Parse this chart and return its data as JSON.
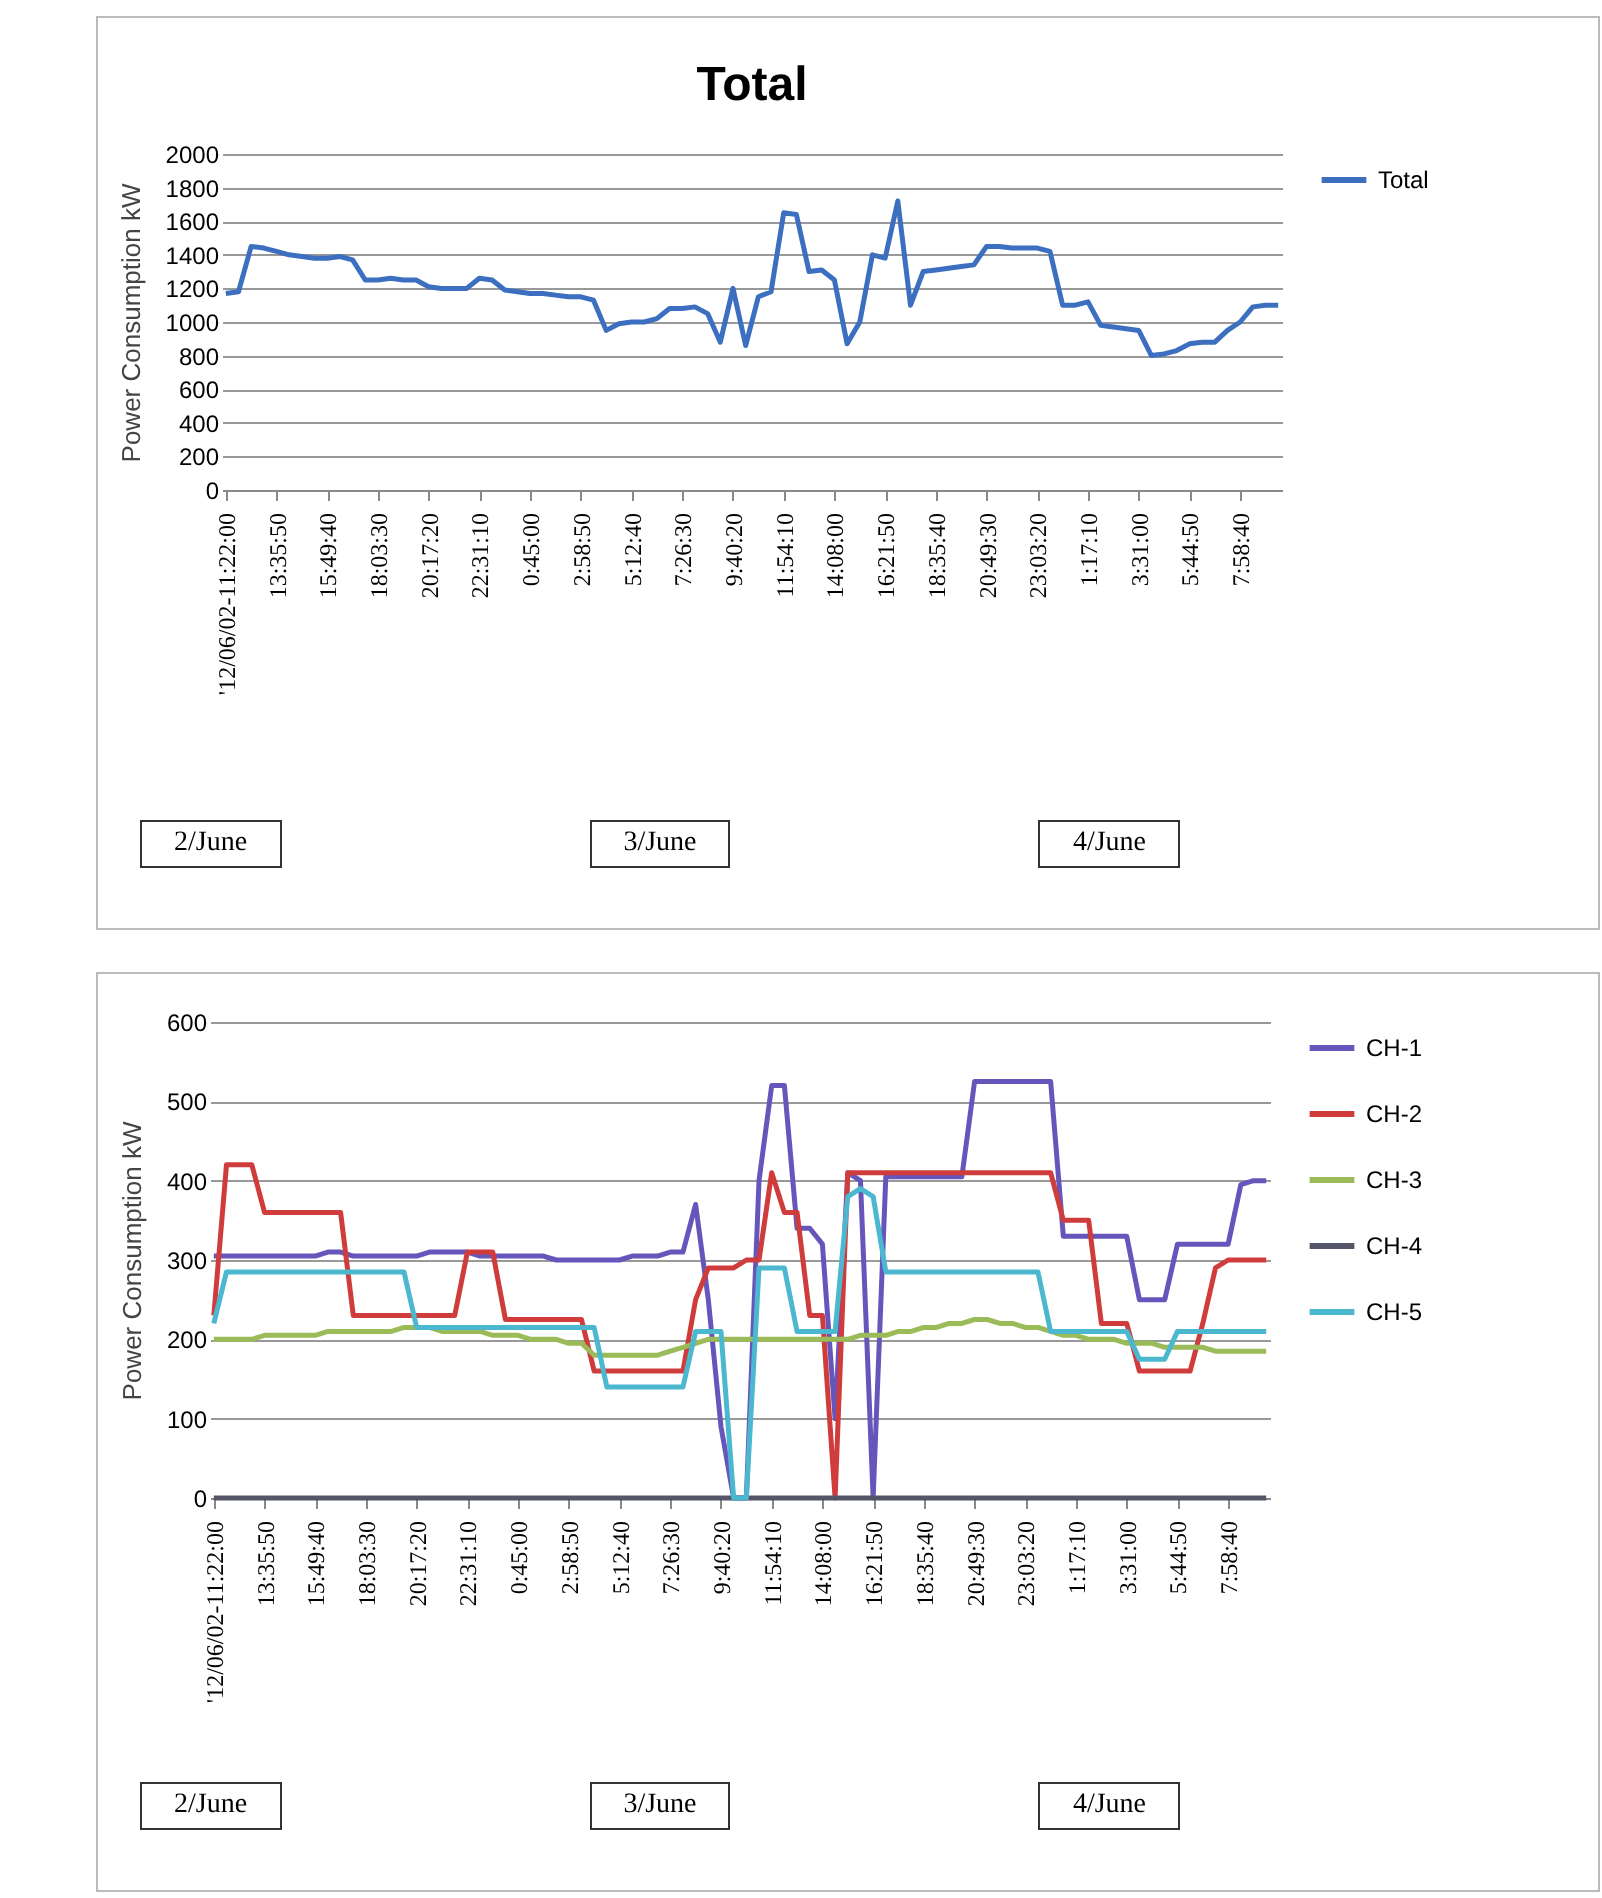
{
  "chart_data": [
    {
      "type": "line",
      "title": "Total",
      "ylabel": "Power Consumption kW",
      "categories": [
        "'12/06/02-11:22:00",
        null,
        null,
        null,
        "13:35:50",
        null,
        null,
        null,
        "15:49:40",
        null,
        null,
        null,
        "18:03:30",
        null,
        null,
        null,
        "20:17:20",
        null,
        null,
        null,
        "22:31:10",
        null,
        null,
        null,
        "0:45:00",
        null,
        null,
        null,
        "2:58:50",
        null,
        null,
        null,
        "5:12:40",
        null,
        null,
        null,
        "7:26:30",
        null,
        null,
        null,
        "9:40:20",
        null,
        null,
        null,
        "11:54:10",
        null,
        null,
        null,
        "14:08:00",
        null,
        null,
        null,
        "16:21:50",
        null,
        null,
        null,
        "18:35:40",
        null,
        null,
        null,
        "20:49:30",
        null,
        null,
        null,
        "23:03:20",
        null,
        null,
        null,
        "1:17:10",
        null,
        null,
        null,
        "3:31:00",
        null,
        null,
        null,
        "5:44:50",
        null,
        null,
        null,
        "7:58:40",
        null,
        null,
        null
      ],
      "series": [
        {
          "name": "Total",
          "color": "#3c6fbf",
          "values": [
            1170,
            1180,
            1450,
            1440,
            1420,
            1400,
            1390,
            1380,
            1380,
            1390,
            1370,
            1250,
            1250,
            1260,
            1250,
            1250,
            1210,
            1200,
            1200,
            1200,
            1260,
            1250,
            1190,
            1180,
            1170,
            1170,
            1160,
            1150,
            1150,
            1130,
            950,
            990,
            1000,
            1000,
            1020,
            1080,
            1080,
            1090,
            1050,
            880,
            1200,
            860,
            1150,
            1180,
            1650,
            1640,
            1300,
            1310,
            1250,
            870,
            1000,
            1400,
            1380,
            1720,
            1100,
            1300,
            1310,
            1320,
            1330,
            1340,
            1450,
            1450,
            1440,
            1440,
            1440,
            1420,
            1100,
            1100,
            1120,
            980,
            970,
            960,
            950,
            800,
            810,
            830,
            870,
            880,
            880,
            950,
            1000,
            1090,
            1100,
            1100
          ]
        }
      ],
      "ylim": [
        0,
        2000
      ],
      "yticks": [
        0,
        200,
        400,
        600,
        800,
        1000,
        1200,
        1400,
        1600,
        1800,
        2000
      ],
      "grid": "y",
      "legend": "right",
      "annotations": [
        "2/June",
        "3/June",
        "4/June"
      ]
    },
    {
      "type": "line",
      "ylabel": "Power Consumption kW",
      "categories": [
        "'12/06/02-11:22:00",
        null,
        null,
        null,
        "13:35:50",
        null,
        null,
        null,
        "15:49:40",
        null,
        null,
        null,
        "18:03:30",
        null,
        null,
        null,
        "20:17:20",
        null,
        null,
        null,
        "22:31:10",
        null,
        null,
        null,
        "0:45:00",
        null,
        null,
        null,
        "2:58:50",
        null,
        null,
        null,
        "5:12:40",
        null,
        null,
        null,
        "7:26:30",
        null,
        null,
        null,
        "9:40:20",
        null,
        null,
        null,
        "11:54:10",
        null,
        null,
        null,
        "14:08:00",
        null,
        null,
        null,
        "16:21:50",
        null,
        null,
        null,
        "18:35:40",
        null,
        null,
        null,
        "20:49:30",
        null,
        null,
        null,
        "23:03:20",
        null,
        null,
        null,
        "1:17:10",
        null,
        null,
        null,
        "3:31:00",
        null,
        null,
        null,
        "5:44:50",
        null,
        null,
        null,
        "7:58:40",
        null,
        null,
        null
      ],
      "series": [
        {
          "name": "CH-1",
          "color": "#6655bb",
          "values": [
            305,
            305,
            305,
            305,
            305,
            305,
            305,
            305,
            305,
            310,
            310,
            305,
            305,
            305,
            305,
            305,
            305,
            310,
            310,
            310,
            310,
            305,
            305,
            305,
            305,
            305,
            305,
            300,
            300,
            300,
            300,
            300,
            300,
            305,
            305,
            305,
            310,
            310,
            370,
            250,
            90,
            0,
            0,
            400,
            520,
            520,
            340,
            340,
            320,
            100,
            410,
            400,
            0,
            405,
            405,
            405,
            405,
            405,
            405,
            405,
            525,
            525,
            525,
            525,
            525,
            525,
            525,
            330,
            330,
            330,
            330,
            330,
            330,
            250,
            250,
            250,
            320,
            320,
            320,
            320,
            320,
            395,
            400,
            400
          ]
        },
        {
          "name": "CH-2",
          "color": "#d03c3c",
          "values": [
            230,
            420,
            420,
            420,
            360,
            360,
            360,
            360,
            360,
            360,
            360,
            230,
            230,
            230,
            230,
            230,
            230,
            230,
            230,
            230,
            310,
            310,
            310,
            225,
            225,
            225,
            225,
            225,
            225,
            225,
            160,
            160,
            160,
            160,
            160,
            160,
            160,
            160,
            250,
            290,
            290,
            290,
            300,
            300,
            410,
            360,
            360,
            230,
            230,
            0,
            410,
            410,
            410,
            410,
            410,
            410,
            410,
            410,
            410,
            410,
            410,
            410,
            410,
            410,
            410,
            410,
            410,
            350,
            350,
            350,
            220,
            220,
            220,
            160,
            160,
            160,
            160,
            160,
            220,
            290,
            300,
            300,
            300,
            300
          ]
        },
        {
          "name": "CH-3",
          "color": "#9bbb59",
          "values": [
            200,
            200,
            200,
            200,
            205,
            205,
            205,
            205,
            205,
            210,
            210,
            210,
            210,
            210,
            210,
            215,
            215,
            215,
            210,
            210,
            210,
            210,
            205,
            205,
            205,
            200,
            200,
            200,
            195,
            195,
            180,
            180,
            180,
            180,
            180,
            180,
            185,
            190,
            195,
            200,
            200,
            200,
            200,
            200,
            200,
            200,
            200,
            200,
            200,
            200,
            200,
            205,
            205,
            205,
            210,
            210,
            215,
            215,
            220,
            220,
            225,
            225,
            220,
            220,
            215,
            215,
            210,
            205,
            205,
            200,
            200,
            200,
            195,
            195,
            195,
            190,
            190,
            190,
            190,
            185,
            185,
            185,
            185,
            185
          ]
        },
        {
          "name": "CH-4",
          "color": "#55556a",
          "values": [
            0,
            0,
            0,
            0,
            0,
            0,
            0,
            0,
            0,
            0,
            0,
            0,
            0,
            0,
            0,
            0,
            0,
            0,
            0,
            0,
            0,
            0,
            0,
            0,
            0,
            0,
            0,
            0,
            0,
            0,
            0,
            0,
            0,
            0,
            0,
            0,
            0,
            0,
            0,
            0,
            0,
            0,
            0,
            0,
            0,
            0,
            0,
            0,
            0,
            0,
            0,
            0,
            0,
            0,
            0,
            0,
            0,
            0,
            0,
            0,
            0,
            0,
            0,
            0,
            0,
            0,
            0,
            0,
            0,
            0,
            0,
            0,
            0,
            0,
            0,
            0,
            0,
            0,
            0,
            0,
            0,
            0,
            0,
            0
          ]
        },
        {
          "name": "CH-5",
          "color": "#4bb8d0",
          "values": [
            220,
            285,
            285,
            285,
            285,
            285,
            285,
            285,
            285,
            285,
            285,
            285,
            285,
            285,
            285,
            285,
            215,
            215,
            215,
            215,
            215,
            215,
            215,
            215,
            215,
            215,
            215,
            215,
            215,
            215,
            215,
            140,
            140,
            140,
            140,
            140,
            140,
            140,
            210,
            210,
            210,
            0,
            0,
            290,
            290,
            290,
            210,
            210,
            210,
            210,
            380,
            390,
            380,
            285,
            285,
            285,
            285,
            285,
            285,
            285,
            285,
            285,
            285,
            285,
            285,
            285,
            210,
            210,
            210,
            210,
            210,
            210,
            210,
            175,
            175,
            175,
            210,
            210,
            210,
            210,
            210,
            210,
            210,
            210
          ]
        }
      ],
      "ylim": [
        0,
        600
      ],
      "yticks": [
        0,
        100,
        200,
        300,
        400,
        500,
        600
      ],
      "grid": "y",
      "legend": "right",
      "annotations": [
        "2/June",
        "3/June",
        "4/June"
      ]
    }
  ]
}
